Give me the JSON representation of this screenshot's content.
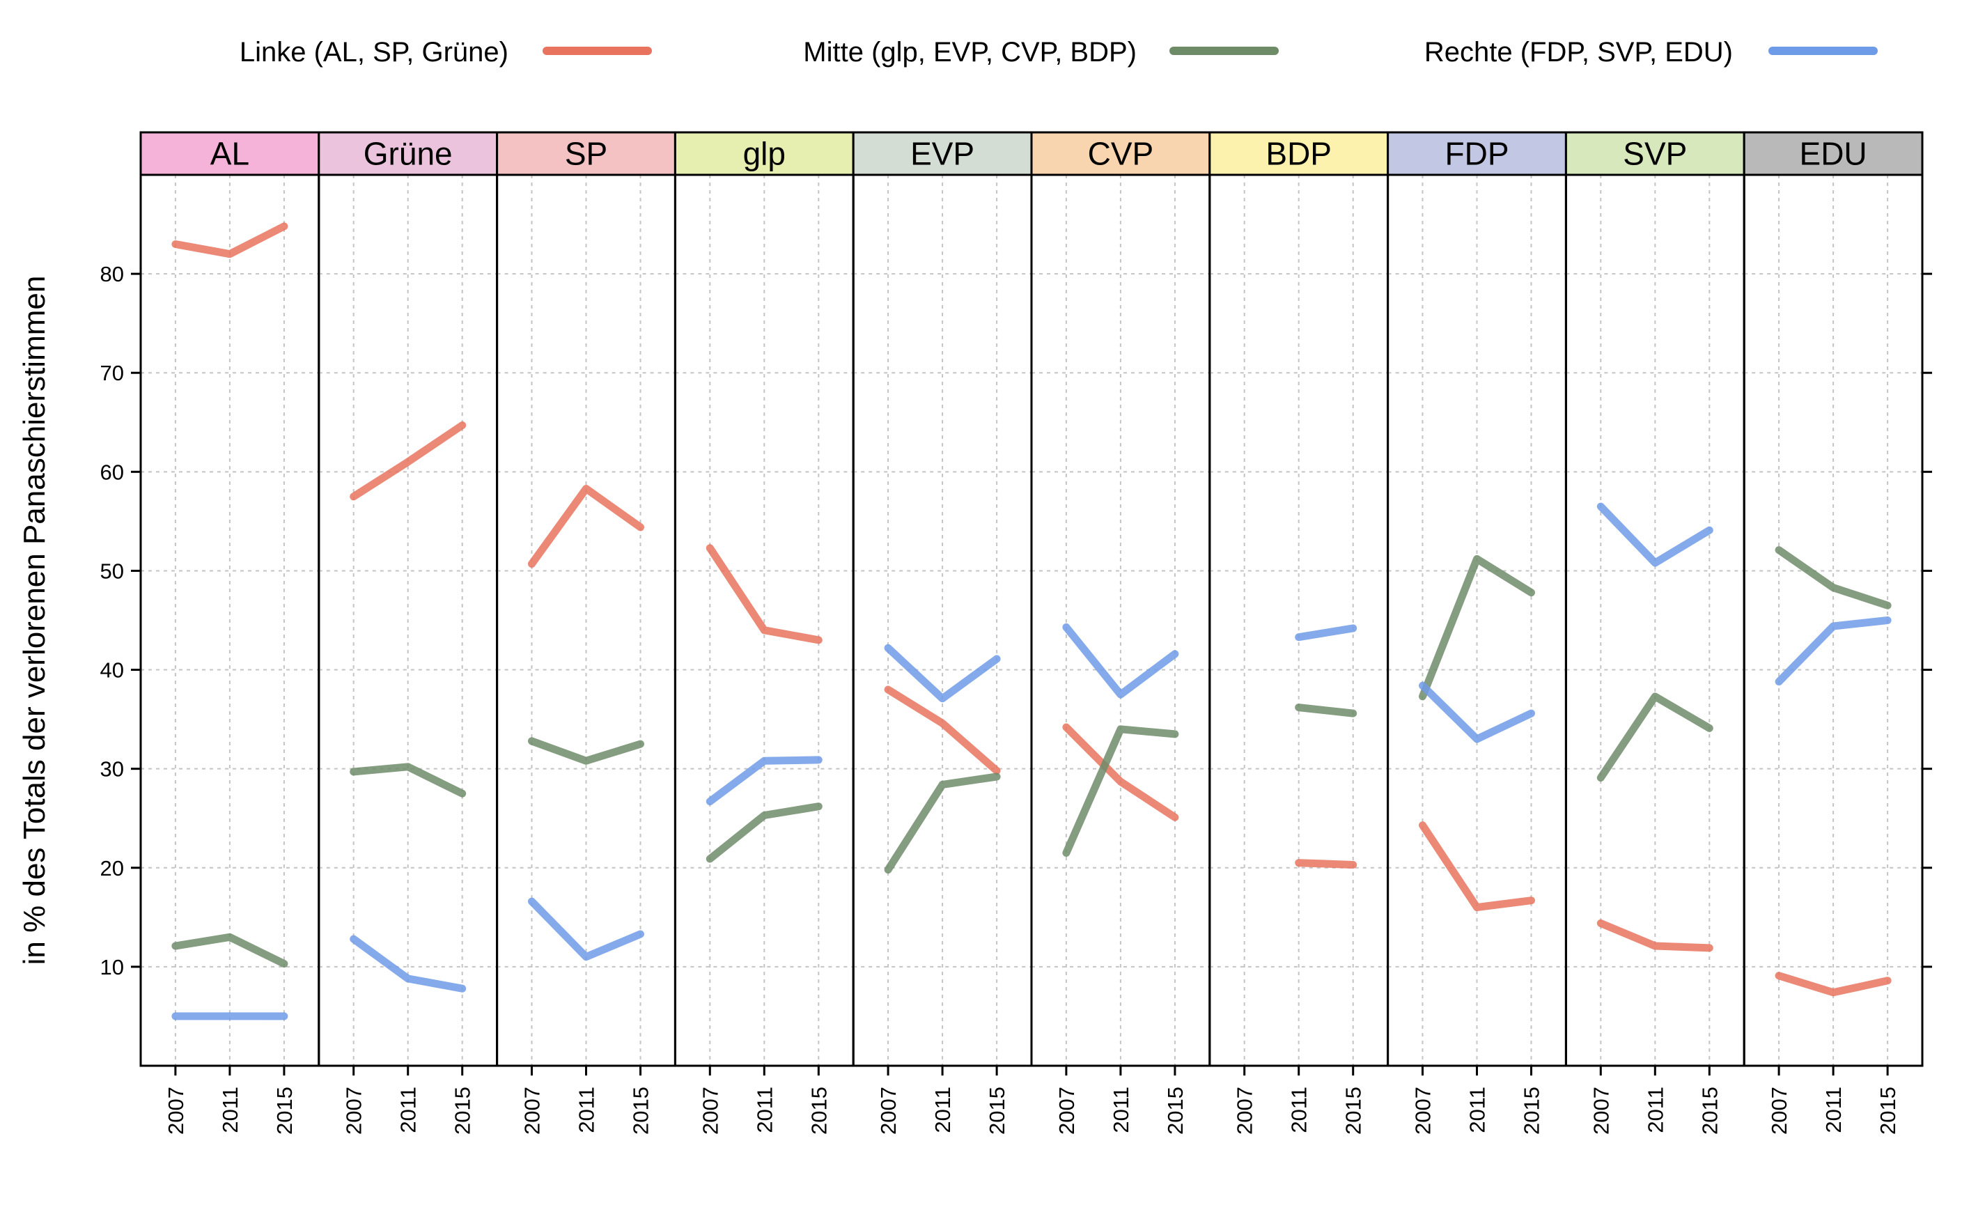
{
  "chart_data": {
    "type": "line",
    "layout": "small-multiples",
    "ylabel": "in % des Totals der verlorenen Panaschierstimmen",
    "ylim": [
      0,
      90
    ],
    "yticks": [
      10,
      20,
      30,
      40,
      50,
      60,
      70,
      80
    ],
    "x": [
      "2007",
      "2011",
      "2015"
    ],
    "grid": true,
    "legend": {
      "position": "top",
      "entries": [
        {
          "key": "linke",
          "label": "Linke (AL, SP, Grüne)",
          "color": "#E8735E"
        },
        {
          "key": "mitte",
          "label": "Mitte (glp, EVP, CVP, BDP)",
          "color": "#6E8B68"
        },
        {
          "key": "rechte",
          "label": "Rechte (FDP, SVP, EDU)",
          "color": "#6E9BE8"
        }
      ]
    },
    "panels": [
      {
        "label": "AL",
        "strip_color": "#F5B3D9",
        "series": {
          "linke": [
            83,
            82,
            84.8
          ],
          "mitte": [
            12.1,
            13,
            10.3
          ],
          "rechte": [
            5,
            5,
            5
          ]
        }
      },
      {
        "label": "Grüne",
        "strip_color": "#EBC3DD",
        "series": {
          "linke": [
            57.5,
            61,
            64.7
          ],
          "mitte": [
            29.7,
            30.2,
            27.5
          ],
          "rechte": [
            12.8,
            8.8,
            7.8
          ]
        }
      },
      {
        "label": "SP",
        "strip_color": "#F5C2C4",
        "series": {
          "linke": [
            50.7,
            58.3,
            54.4
          ],
          "mitte": [
            32.8,
            30.8,
            32.5
          ],
          "rechte": [
            16.6,
            11,
            13.3
          ]
        }
      },
      {
        "label": "glp",
        "strip_color": "#E6EFAF",
        "series": {
          "linke": [
            52.3,
            44,
            43
          ],
          "mitte": [
            20.9,
            25.3,
            26.2
          ],
          "rechte": [
            26.7,
            30.8,
            30.9
          ]
        }
      },
      {
        "label": "EVP",
        "strip_color": "#D3DDD3",
        "series": {
          "linke": [
            38,
            34.6,
            29.8
          ],
          "mitte": [
            19.8,
            28.4,
            29.2
          ],
          "rechte": [
            42.2,
            37.1,
            41.1
          ]
        }
      },
      {
        "label": "CVP",
        "strip_color": "#F8D5AE",
        "series": {
          "linke": [
            34.2,
            28.7,
            25.1
          ],
          "mitte": [
            21.5,
            34,
            33.5
          ],
          "rechte": [
            44.3,
            37.5,
            41.6
          ]
        }
      },
      {
        "label": "BDP",
        "strip_color": "#FDF1AE",
        "series": {
          "linke": [
            null,
            20.5,
            20.3
          ],
          "mitte": [
            null,
            36.2,
            35.6
          ],
          "rechte": [
            null,
            43.3,
            44.2
          ]
        }
      },
      {
        "label": "FDP",
        "strip_color": "#C2C7E4",
        "series": {
          "linke": [
            24.3,
            16,
            16.7
          ],
          "mitte": [
            37.3,
            51.2,
            47.8
          ],
          "rechte": [
            38.4,
            33,
            35.6
          ]
        }
      },
      {
        "label": "SVP",
        "strip_color": "#D6E8BC",
        "series": {
          "linke": [
            14.4,
            12.1,
            11.9
          ],
          "mitte": [
            29.1,
            37.3,
            34.1
          ],
          "rechte": [
            56.5,
            50.8,
            54.1
          ]
        }
      },
      {
        "label": "EDU",
        "strip_color": "#B9B9B9",
        "series": {
          "linke": [
            9.1,
            7.4,
            8.6
          ],
          "mitte": [
            52.1,
            48.3,
            46.5
          ],
          "rechte": [
            38.8,
            44.4,
            45
          ]
        }
      }
    ]
  }
}
